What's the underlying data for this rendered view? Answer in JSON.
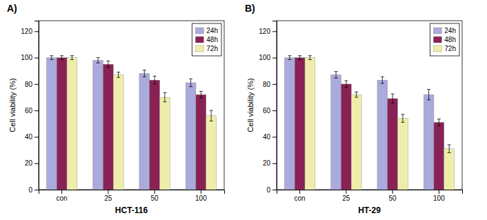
{
  "chart_data": [
    {
      "type": "bar",
      "title": "A)",
      "xlabel": "HCT-116",
      "ylabel": "Cell viability (%)",
      "categories": [
        "con",
        "25",
        "50",
        "100"
      ],
      "series": [
        {
          "name": "24h",
          "color": "#aaaadd",
          "values": [
            100,
            98,
            88,
            81
          ],
          "errors": [
            1.5,
            2.0,
            2.5,
            3.0
          ]
        },
        {
          "name": "48h",
          "color": "#882255",
          "values": [
            100,
            95,
            83,
            72
          ],
          "errors": [
            1.5,
            2.5,
            3.0,
            2.5
          ]
        },
        {
          "name": "72h",
          "color": "#eeeeaa",
          "values": [
            100,
            87,
            70,
            56
          ],
          "errors": [
            1.5,
            2.0,
            3.5,
            4.0
          ]
        }
      ],
      "ylim": [
        0,
        128
      ],
      "yticks": [
        0,
        20,
        40,
        60,
        80,
        100,
        120
      ],
      "grid": false,
      "legend": "upper right"
    },
    {
      "type": "bar",
      "title": "B)",
      "xlabel": "HT-29",
      "ylabel": "Cell viability (%)",
      "categories": [
        "con",
        "25",
        "50",
        "100"
      ],
      "series": [
        {
          "name": "24h",
          "color": "#aaaadd",
          "values": [
            100,
            87,
            83,
            72
          ],
          "errors": [
            1.5,
            2.5,
            2.5,
            4.0
          ]
        },
        {
          "name": "48h",
          "color": "#882255",
          "values": [
            100,
            80,
            69,
            51
          ],
          "errors": [
            1.5,
            2.5,
            3.5,
            2.5
          ]
        },
        {
          "name": "72h",
          "color": "#eeeeaa",
          "values": [
            100,
            72,
            54,
            31
          ],
          "errors": [
            1.5,
            2.0,
            3.0,
            3.0
          ]
        }
      ],
      "ylim": [
        0,
        128
      ],
      "yticks": [
        0,
        20,
        40,
        60,
        80,
        100,
        120
      ],
      "grid": false,
      "legend": "upper right"
    }
  ]
}
